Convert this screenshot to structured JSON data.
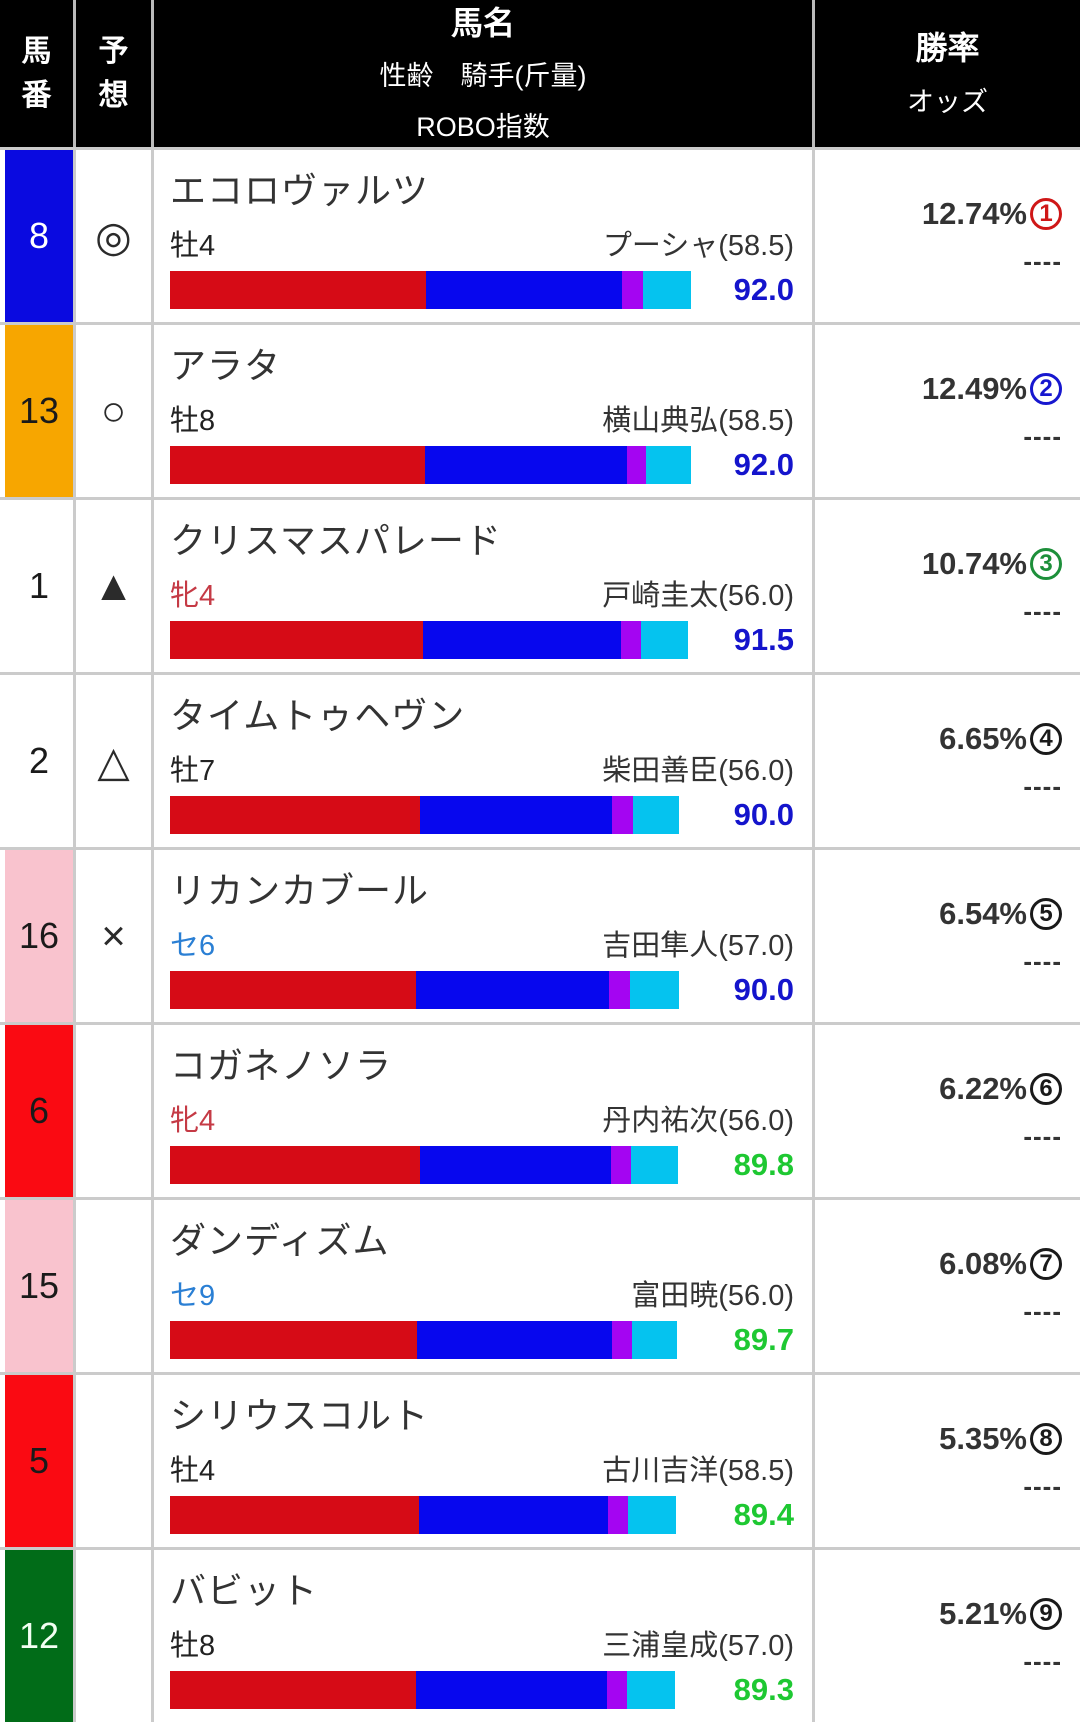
{
  "header": {
    "umaban": "馬番",
    "yoso": "予想",
    "name_line1": "馬名",
    "name_line2": "性齢　騎手(斤量)",
    "name_line3": "ROBO指数",
    "rate_line1": "勝率",
    "rate_line2": "オッズ"
  },
  "colors": {
    "bar_red": "#d60b16",
    "bar_blue": "#0707ee",
    "bar_purple": "#a405f2",
    "bar_cyan": "#05c3ef",
    "grid_line": "#cbcbcb",
    "header_bg": "#000000"
  },
  "rows": [
    {
      "number": "8",
      "frame_color": "#0a0ae0",
      "number_color": "#ffffff",
      "mark": "◎",
      "name": "エコロヴァルツ",
      "sex_age": "牡4",
      "sex_color": "#222222",
      "jockey": "プーシャ(58.5)",
      "index": "92.0",
      "index_color": "#1414cc",
      "win_rate": "12.74%",
      "rank": "1",
      "rank_color": "#cf1717",
      "odds": "----",
      "bar_red": "256px",
      "bar_blue": "196px",
      "bar_purple": "21px",
      "bar_cyan": "48px"
    },
    {
      "number": "13",
      "frame_color": "#f7a600",
      "number_color": "#1a1a1a",
      "mark": "○",
      "name": "アラタ",
      "sex_age": "牡8",
      "sex_color": "#222222",
      "jockey": "横山典弘(58.5)",
      "index": "92.0",
      "index_color": "#1414cc",
      "win_rate": "12.49%",
      "rank": "2",
      "rank_color": "#1717cf",
      "odds": "----",
      "bar_red": "255px",
      "bar_blue": "202px",
      "bar_purple": "19px",
      "bar_cyan": "45px"
    },
    {
      "number": "1",
      "frame_color": "#ffffff",
      "number_color": "#1a1a1a",
      "mark": "▲",
      "name": "クリスマスパレード",
      "sex_age": "牝4",
      "sex_color": "#c53a45",
      "jockey": "戸崎圭太(56.0)",
      "index": "91.5",
      "index_color": "#1414cc",
      "win_rate": "10.74%",
      "rank": "3",
      "rank_color": "#1d8f3a",
      "odds": "----",
      "bar_red": "253px",
      "bar_blue": "198px",
      "bar_purple": "20px",
      "bar_cyan": "47px"
    },
    {
      "number": "2",
      "frame_color": "#ffffff",
      "number_color": "#1a1a1a",
      "mark": "△",
      "name": "タイムトゥヘヴン",
      "sex_age": "牡7",
      "sex_color": "#222222",
      "jockey": "柴田善臣(56.0)",
      "index": "90.0",
      "index_color": "#1414cc",
      "win_rate": "6.65%",
      "rank": "4",
      "rank_color": "#1a1a1a",
      "odds": "----",
      "bar_red": "250px",
      "bar_blue": "192px",
      "bar_purple": "21px",
      "bar_cyan": "46px"
    },
    {
      "number": "16",
      "frame_color": "#f9c3ce",
      "number_color": "#1a1a1a",
      "mark": "×",
      "name": "リカンカブール",
      "sex_age": "セ6",
      "sex_color": "#2a7fd4",
      "jockey": "吉田隼人(57.0)",
      "index": "90.0",
      "index_color": "#1414cc",
      "win_rate": "6.54%",
      "rank": "5",
      "rank_color": "#1a1a1a",
      "odds": "----",
      "bar_red": "246px",
      "bar_blue": "193px",
      "bar_purple": "21px",
      "bar_cyan": "49px"
    },
    {
      "number": "6",
      "frame_color": "#fa0a12",
      "number_color": "#1a1a1a",
      "mark": "",
      "name": "コガネノソラ",
      "sex_age": "牝4",
      "sex_color": "#c53a45",
      "jockey": "丹内祐次(56.0)",
      "index": "89.8",
      "index_color": "#1ec832",
      "win_rate": "6.22%",
      "rank": "6",
      "rank_color": "#1a1a1a",
      "odds": "----",
      "bar_red": "250px",
      "bar_blue": "191px",
      "bar_purple": "20px",
      "bar_cyan": "47px"
    },
    {
      "number": "15",
      "frame_color": "#f9c3ce",
      "number_color": "#1a1a1a",
      "mark": "",
      "name": "ダンディズム",
      "sex_age": "セ9",
      "sex_color": "#2a7fd4",
      "jockey": "富田暁(56.0)",
      "index": "89.7",
      "index_color": "#1ec832",
      "win_rate": "6.08%",
      "rank": "7",
      "rank_color": "#1a1a1a",
      "odds": "----",
      "bar_red": "247px",
      "bar_blue": "195px",
      "bar_purple": "20px",
      "bar_cyan": "45px"
    },
    {
      "number": "5",
      "frame_color": "#fa0a12",
      "number_color": "#1a1a1a",
      "mark": "",
      "name": "シリウスコルト",
      "sex_age": "牡4",
      "sex_color": "#222222",
      "jockey": "古川吉洋(58.5)",
      "index": "89.4",
      "index_color": "#1ec832",
      "win_rate": "5.35%",
      "rank": "8",
      "rank_color": "#1a1a1a",
      "odds": "----",
      "bar_red": "249px",
      "bar_blue": "189px",
      "bar_purple": "20px",
      "bar_cyan": "48px"
    },
    {
      "number": "12",
      "frame_color": "#016c18",
      "number_color": "#f2fff2",
      "mark": "",
      "name": "バビット",
      "sex_age": "牡8",
      "sex_color": "#222222",
      "jockey": "三浦皇成(57.0)",
      "index": "89.3",
      "index_color": "#1ec832",
      "win_rate": "5.21%",
      "rank": "9",
      "rank_color": "#1a1a1a",
      "odds": "----",
      "bar_red": "246px",
      "bar_blue": "191px",
      "bar_purple": "20px",
      "bar_cyan": "48px"
    }
  ]
}
